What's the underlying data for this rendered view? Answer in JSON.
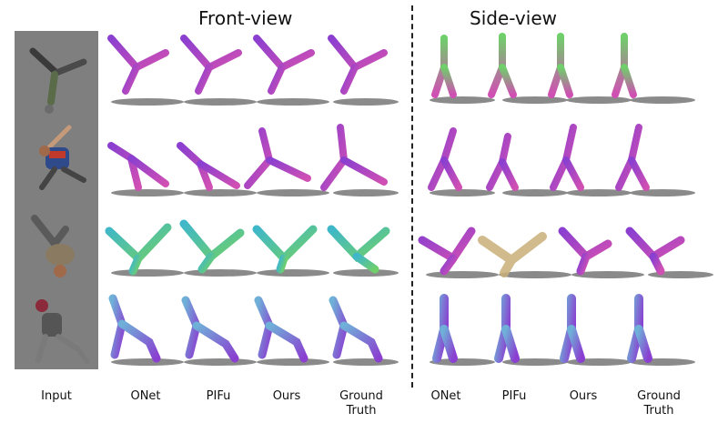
{
  "figure": {
    "titles": {
      "front": "Front-view",
      "side": "Side-view"
    },
    "labels": {
      "input": "Input",
      "front": [
        "ONet",
        "PIFu",
        "Ours",
        "Ground\nTruth"
      ],
      "side": [
        "ONet",
        "PIFu",
        "Ours",
        "Ground\nTruth"
      ]
    },
    "colors": {
      "shade_purple": "#8a3fd0",
      "shade_cyan": "#3fb7c9",
      "shade_green": "#6fcf6a",
      "shade_pink": "#d04fb3",
      "input_bg": "#7f7f7f",
      "shadow": "#2b2b2b"
    }
  }
}
